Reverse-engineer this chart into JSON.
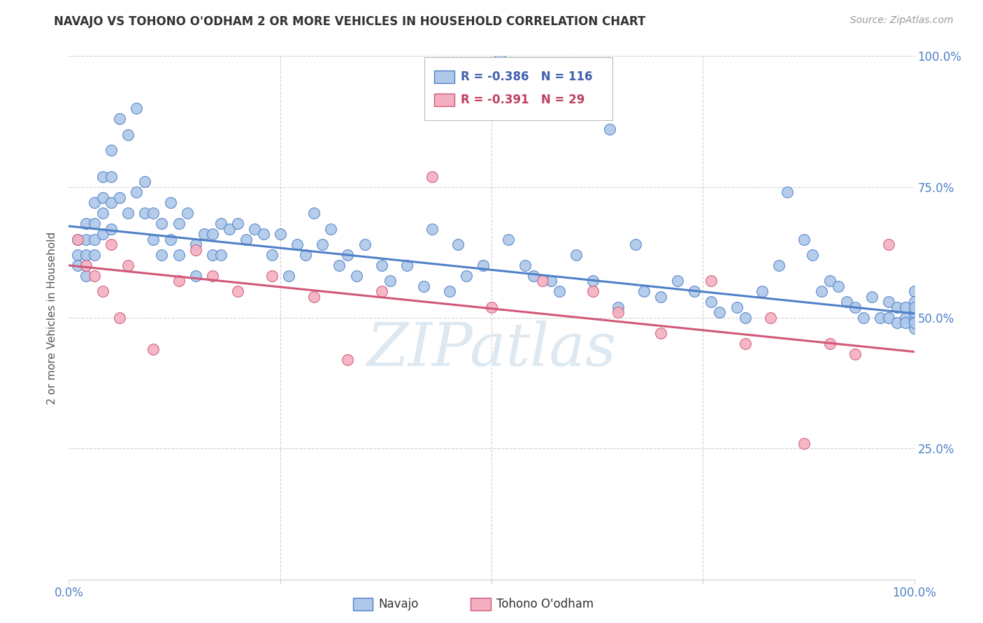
{
  "title": "NAVAJO VS TOHONO O'ODHAM 2 OR MORE VEHICLES IN HOUSEHOLD CORRELATION CHART",
  "source": "Source: ZipAtlas.com",
  "ylabel": "2 or more Vehicles in Household",
  "navajo_R": -0.386,
  "navajo_N": 116,
  "tohono_R": -0.391,
  "tohono_N": 29,
  "navajo_color": "#adc8e8",
  "navajo_line_color": "#5080c8",
  "tohono_color": "#f4b0c0",
  "tohono_line_color": "#d05878",
  "bg_color": "#ffffff",
  "grid_color": "#d0d0d0",
  "watermark": "ZIPatlas",
  "watermark_color": "#dde8f0",
  "xlim": [
    0,
    1
  ],
  "ylim": [
    0,
    1
  ],
  "navajo_trend_start": 0.675,
  "navajo_trend_end": 0.508,
  "tohono_trend_start": 0.6,
  "tohono_trend_end": 0.435,
  "navajo_x": [
    0.01,
    0.01,
    0.01,
    0.02,
    0.02,
    0.02,
    0.02,
    0.03,
    0.03,
    0.03,
    0.03,
    0.04,
    0.04,
    0.04,
    0.04,
    0.05,
    0.05,
    0.05,
    0.05,
    0.06,
    0.06,
    0.07,
    0.07,
    0.08,
    0.08,
    0.09,
    0.09,
    0.1,
    0.1,
    0.11,
    0.11,
    0.12,
    0.12,
    0.13,
    0.13,
    0.14,
    0.15,
    0.15,
    0.16,
    0.17,
    0.17,
    0.18,
    0.18,
    0.19,
    0.2,
    0.21,
    0.22,
    0.23,
    0.24,
    0.25,
    0.26,
    0.27,
    0.28,
    0.29,
    0.3,
    0.31,
    0.32,
    0.33,
    0.34,
    0.35,
    0.37,
    0.38,
    0.4,
    0.42,
    0.43,
    0.45,
    0.46,
    0.47,
    0.49,
    0.51,
    0.52,
    0.54,
    0.55,
    0.57,
    0.58,
    0.6,
    0.62,
    0.64,
    0.65,
    0.67,
    0.68,
    0.7,
    0.72,
    0.74,
    0.76,
    0.77,
    0.79,
    0.8,
    0.82,
    0.84,
    0.85,
    0.87,
    0.88,
    0.89,
    0.9,
    0.91,
    0.92,
    0.93,
    0.94,
    0.95,
    0.96,
    0.97,
    0.97,
    0.98,
    0.98,
    0.99,
    0.99,
    0.99,
    1.0,
    1.0,
    1.0,
    1.0,
    1.0,
    1.0,
    1.0,
    1.0
  ],
  "navajo_y": [
    0.65,
    0.62,
    0.6,
    0.68,
    0.65,
    0.62,
    0.58,
    0.72,
    0.68,
    0.65,
    0.62,
    0.77,
    0.73,
    0.7,
    0.66,
    0.82,
    0.77,
    0.72,
    0.67,
    0.88,
    0.73,
    0.85,
    0.7,
    0.9,
    0.74,
    0.76,
    0.7,
    0.7,
    0.65,
    0.68,
    0.62,
    0.72,
    0.65,
    0.68,
    0.62,
    0.7,
    0.64,
    0.58,
    0.66,
    0.66,
    0.62,
    0.68,
    0.62,
    0.67,
    0.68,
    0.65,
    0.67,
    0.66,
    0.62,
    0.66,
    0.58,
    0.64,
    0.62,
    0.7,
    0.64,
    0.67,
    0.6,
    0.62,
    0.58,
    0.64,
    0.6,
    0.57,
    0.6,
    0.56,
    0.67,
    0.55,
    0.64,
    0.58,
    0.6,
    1.0,
    0.65,
    0.6,
    0.58,
    0.57,
    0.55,
    0.62,
    0.57,
    0.86,
    0.52,
    0.64,
    0.55,
    0.54,
    0.57,
    0.55,
    0.53,
    0.51,
    0.52,
    0.5,
    0.55,
    0.6,
    0.74,
    0.65,
    0.62,
    0.55,
    0.57,
    0.56,
    0.53,
    0.52,
    0.5,
    0.54,
    0.5,
    0.5,
    0.53,
    0.52,
    0.49,
    0.52,
    0.5,
    0.49,
    0.55,
    0.53,
    0.5,
    0.49,
    0.48,
    0.51,
    0.49,
    0.52
  ],
  "tohono_x": [
    0.01,
    0.02,
    0.03,
    0.04,
    0.05,
    0.06,
    0.07,
    0.1,
    0.13,
    0.15,
    0.17,
    0.2,
    0.24,
    0.29,
    0.33,
    0.37,
    0.43,
    0.5,
    0.56,
    0.62,
    0.65,
    0.7,
    0.76,
    0.8,
    0.83,
    0.87,
    0.9,
    0.93,
    0.97
  ],
  "tohono_y": [
    0.65,
    0.6,
    0.58,
    0.55,
    0.64,
    0.5,
    0.6,
    0.44,
    0.57,
    0.63,
    0.58,
    0.55,
    0.58,
    0.54,
    0.42,
    0.55,
    0.77,
    0.52,
    0.57,
    0.55,
    0.51,
    0.47,
    0.57,
    0.45,
    0.5,
    0.26,
    0.45,
    0.43,
    0.64
  ]
}
